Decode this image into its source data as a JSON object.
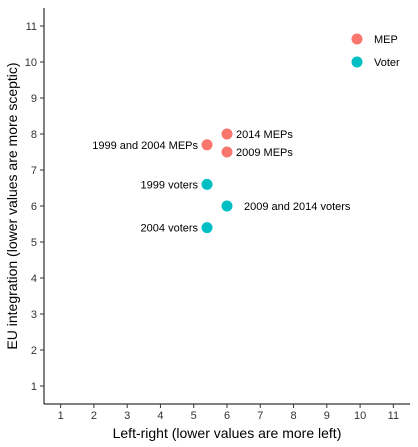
{
  "chart_data": {
    "type": "scatter",
    "xlabel": "Left-right (lower values are more left)",
    "ylabel": "EU integration (lower values are more sceptic)",
    "xlim": [
      0.5,
      11.5
    ],
    "ylim": [
      0.5,
      11.5
    ],
    "xticks": [
      "1",
      "2",
      "3",
      "4",
      "5",
      "6",
      "7",
      "8",
      "9",
      "10",
      "11"
    ],
    "yticks": [
      "1",
      "2",
      "3",
      "4",
      "5",
      "6",
      "7",
      "8",
      "9",
      "10",
      "11"
    ],
    "grid": false,
    "legend_position": "top-right",
    "series": [
      {
        "name": "MEP",
        "color": "#F8766D",
        "points": [
          {
            "x": 6.0,
            "y": 8.0,
            "label": "2014 MEPs",
            "label_side": "right"
          },
          {
            "x": 5.4,
            "y": 7.7,
            "label": "1999 and 2004 MEPs",
            "label_side": "left"
          },
          {
            "x": 6.0,
            "y": 7.5,
            "label": "2009 MEPs",
            "label_side": "right"
          }
        ]
      },
      {
        "name": "Voter",
        "color": "#00BFC4",
        "points": [
          {
            "x": 5.4,
            "y": 6.6,
            "label": "1999 voters",
            "label_side": "left"
          },
          {
            "x": 6.0,
            "y": 6.0,
            "label": "2009 and 2014 voters",
            "label_side": "right-far"
          },
          {
            "x": 5.4,
            "y": 5.4,
            "label": "2004 voters",
            "label_side": "left"
          }
        ]
      }
    ]
  }
}
